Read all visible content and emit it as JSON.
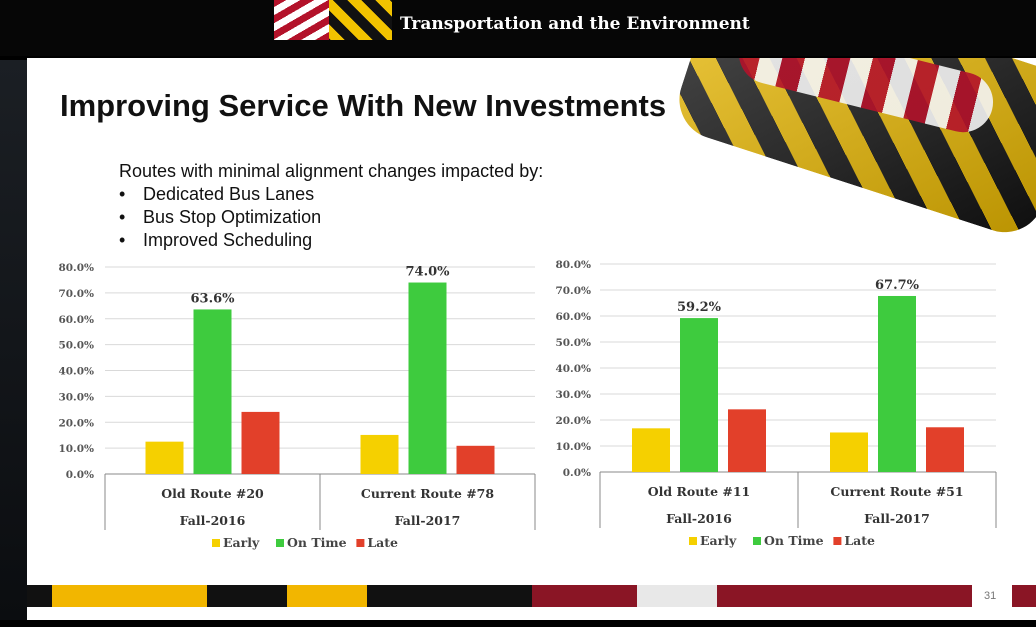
{
  "header": {
    "title": "Transportation and the Environment"
  },
  "slide": {
    "title": "Improving Service With New Investments",
    "intro": "Routes with minimal alignment changes impacted by:",
    "bullets": [
      {
        "mark": "•",
        "text": "Dedicated Bus Lanes"
      },
      {
        "mark": "•",
        "text": "Bus Stop Optimization"
      },
      {
        "mark": "•",
        "text": "Improved Scheduling"
      }
    ],
    "page_number": "31"
  },
  "colors": {
    "early": "#f5d000",
    "on_time": "#3ecb3e",
    "late": "#e2402a",
    "grid": "#d9d9d9",
    "axis_text": "#555555"
  },
  "chart_data": [
    {
      "type": "bar",
      "categories": [
        {
          "name": "Old Route #20",
          "period": "Fall-2016"
        },
        {
          "name": "Current Route #78",
          "period": "Fall-2017"
        }
      ],
      "series": [
        {
          "name": "Early",
          "values": [
            12.5,
            15.1
          ]
        },
        {
          "name": "On Time",
          "values": [
            63.6,
            74.0
          ],
          "labels": [
            "63.6%",
            "74.0%"
          ]
        },
        {
          "name": "Late",
          "values": [
            24.0,
            10.9
          ]
        }
      ],
      "yticks": [
        "0.0%",
        "10.0%",
        "20.0%",
        "30.0%",
        "40.0%",
        "50.0%",
        "60.0%",
        "70.0%",
        "80.0%"
      ],
      "ylim": [
        0,
        80
      ],
      "legend": "bottom"
    },
    {
      "type": "bar",
      "categories": [
        {
          "name": "Old Route #11",
          "period": "Fall-2016"
        },
        {
          "name": "Current Route #51",
          "period": "Fall-2017"
        }
      ],
      "series": [
        {
          "name": "Early",
          "values": [
            16.8,
            15.2
          ]
        },
        {
          "name": "On Time",
          "values": [
            59.2,
            67.7
          ],
          "labels": [
            "59.2%",
            "67.7%"
          ]
        },
        {
          "name": "Late",
          "values": [
            24.1,
            17.2
          ]
        }
      ],
      "yticks": [
        "0.0%",
        "10.0%",
        "20.0%",
        "30.0%",
        "40.0%",
        "50.0%",
        "60.0%",
        "70.0%",
        "80.0%"
      ],
      "ylim": [
        0,
        80
      ],
      "legend": "bottom"
    }
  ]
}
